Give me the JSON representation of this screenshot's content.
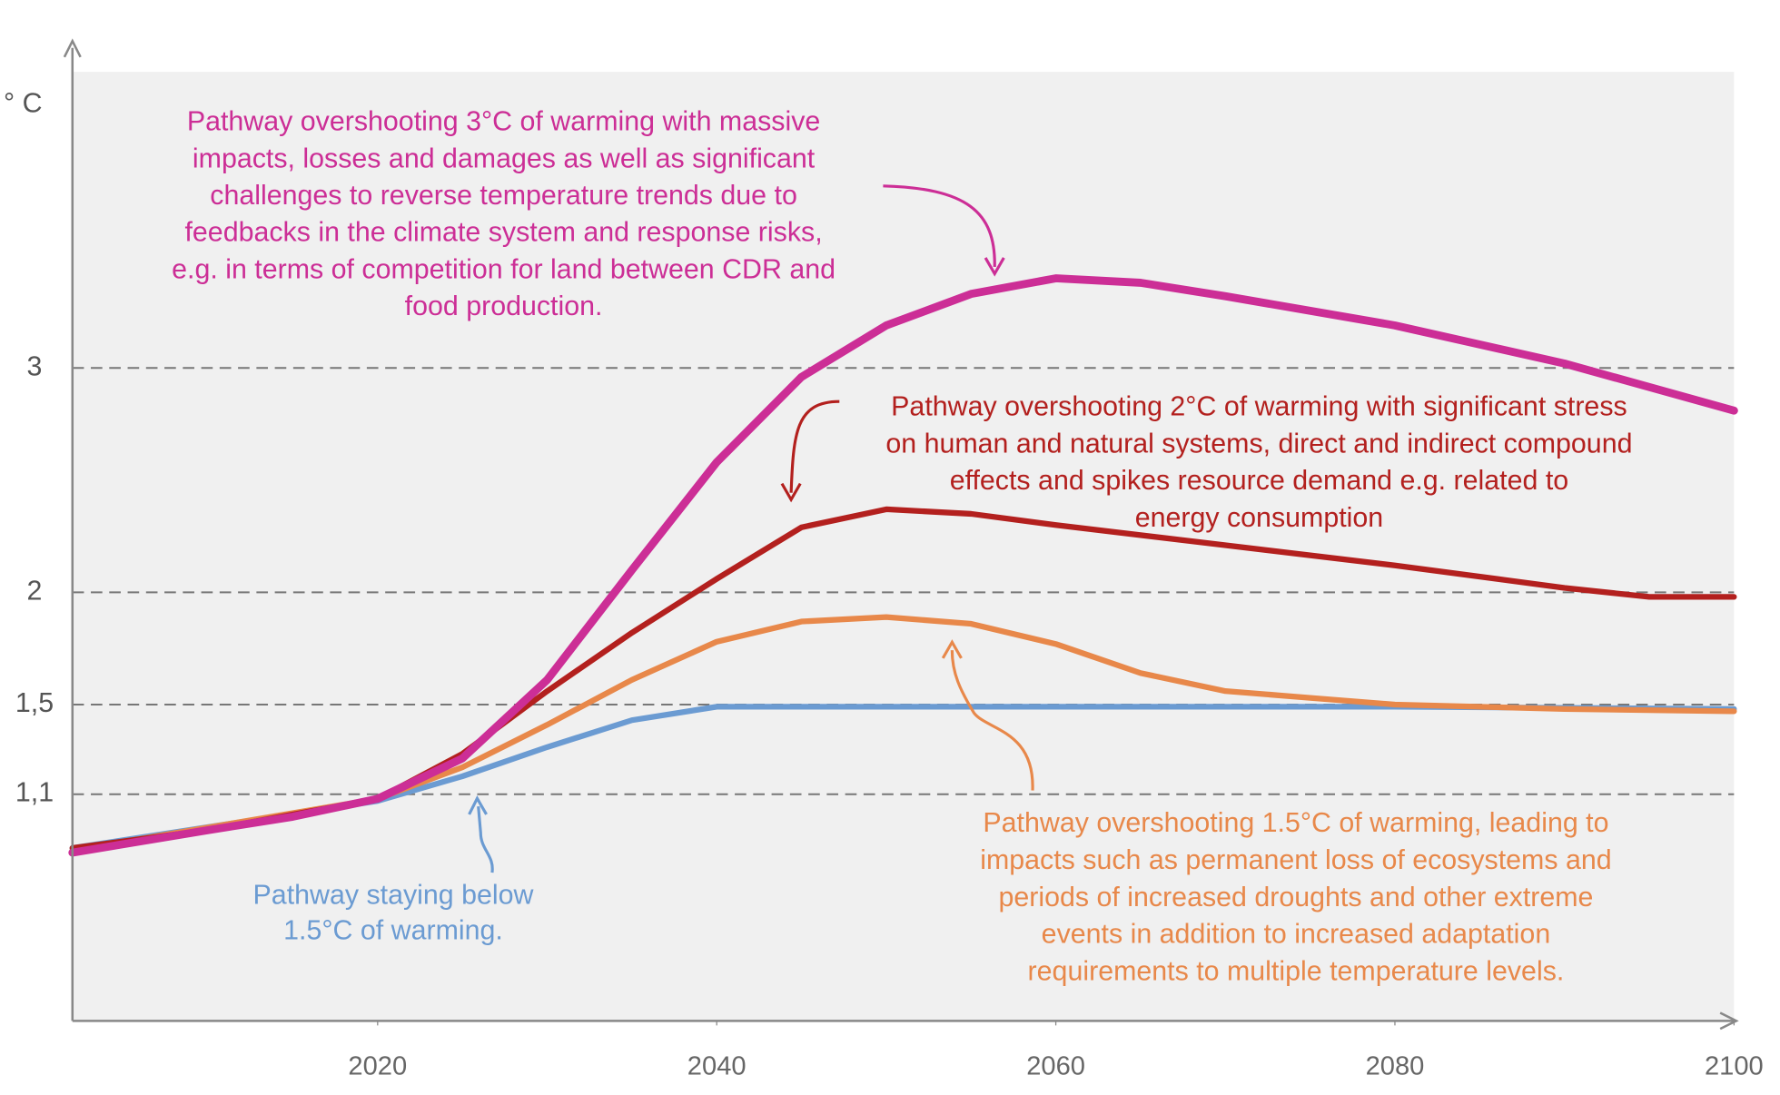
{
  "chart_data": {
    "type": "line",
    "y_label": "° C",
    "xlim": [
      2002,
      2100
    ],
    "ylim": [
      0.09,
      4.32
    ],
    "xticks": [
      2020,
      2040,
      2060,
      2080,
      2100
    ],
    "yticks": [
      {
        "value": 1.1,
        "label": "1,1"
      },
      {
        "value": 1.5,
        "label": "1,5"
      },
      2,
      3
    ],
    "grid": true,
    "series": [
      {
        "name": "Pathway staying below 1.5°C of warming",
        "color": "#6b9bd2",
        "x": [
          2002,
          2020,
          2025,
          2030,
          2035,
          2040,
          2060,
          2080,
          2100
        ],
        "values": [
          0.86,
          1.07,
          1.18,
          1.31,
          1.43,
          1.49,
          1.49,
          1.49,
          1.48
        ]
      },
      {
        "name": "Pathway overshooting 1.5°C",
        "color": "#e8884a",
        "x": [
          2002,
          2020,
          2025,
          2030,
          2035,
          2040,
          2045,
          2050,
          2055,
          2060,
          2065,
          2070,
          2075,
          2080,
          2090,
          2100
        ],
        "values": [
          0.85,
          1.08,
          1.22,
          1.41,
          1.61,
          1.78,
          1.87,
          1.89,
          1.86,
          1.77,
          1.64,
          1.56,
          1.53,
          1.5,
          1.48,
          1.47
        ]
      },
      {
        "name": "Pathway overshooting 2°C",
        "color": "#b3201e",
        "x": [
          2002,
          2010,
          2020,
          2025,
          2030,
          2035,
          2040,
          2045,
          2050,
          2055,
          2060,
          2070,
          2080,
          2090,
          2095,
          2100
        ],
        "values": [
          0.86,
          0.94,
          1.08,
          1.28,
          1.56,
          1.82,
          2.06,
          2.29,
          2.37,
          2.35,
          2.3,
          2.21,
          2.12,
          2.02,
          1.98,
          1.98
        ]
      },
      {
        "name": "Pathway overshooting 3°C",
        "color": "#cc2e96",
        "x": [
          2002,
          2010,
          2015,
          2020,
          2025,
          2030,
          2035,
          2040,
          2045,
          2050,
          2055,
          2060,
          2065,
          2070,
          2080,
          2090,
          2100
        ],
        "values": [
          0.84,
          0.94,
          1.0,
          1.08,
          1.26,
          1.61,
          2.1,
          2.58,
          2.96,
          3.19,
          3.33,
          3.4,
          3.38,
          3.32,
          3.19,
          3.02,
          2.81
        ]
      }
    ],
    "annotations": [
      {
        "color": "#cc2e96",
        "lines": [
          "Pathway overshooting 3°C of warming with massive",
          "impacts, losses and damages as well as significant",
          "challenges to reverse temperature trends due to",
          "feedbacks in the climate system and response risks,",
          "e.g. in terms of competition for land between CDR and",
          "food production."
        ]
      },
      {
        "color": "#b3201e",
        "lines": [
          "Pathway overshooting 2°C of warming with significant stress",
          "on human and natural systems, direct and indirect compound",
          "effects and spikes resource demand e.g. related to",
          "energy consumption"
        ]
      },
      {
        "color": "#e8884a",
        "lines": [
          "Pathway overshooting 1.5°C of warming, leading to",
          "impacts such as permanent loss of ecosystems and",
          "periods of increased droughts and other extreme",
          "events in addition to increased adaptation",
          "requirements to multiple temperature levels."
        ]
      },
      {
        "color": "#6b9bd2",
        "lines": [
          "Pathway staying below",
          "1.5°C of warming."
        ]
      }
    ]
  }
}
